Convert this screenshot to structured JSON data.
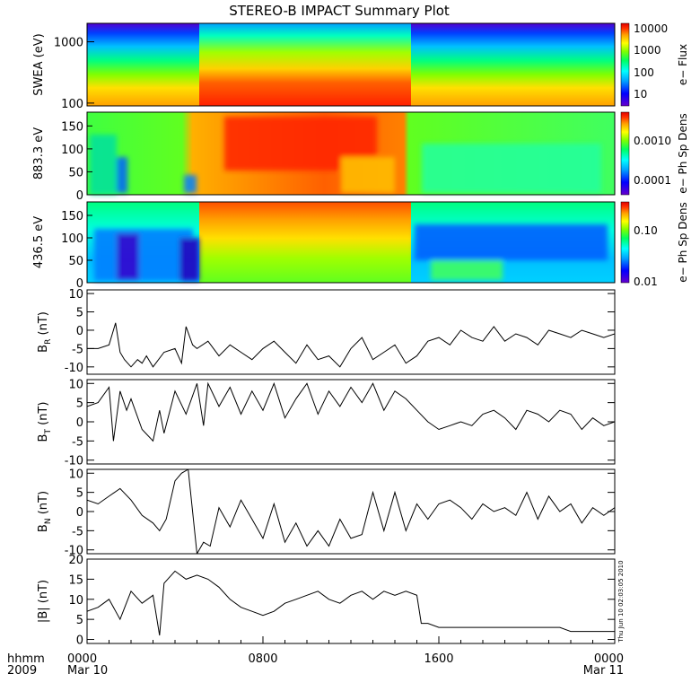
{
  "title": "STEREO-B IMPACT Summary Plot",
  "footer": {
    "left_label_1": "hhmm",
    "left_label_2": "2009",
    "x_ticks": [
      {
        "hour": 0,
        "label": "0000",
        "sublabel": "Mar 10"
      },
      {
        "hour": 8,
        "label": "0800",
        "sublabel": ""
      },
      {
        "hour": 16,
        "label": "1600",
        "sublabel": ""
      },
      {
        "hour": 24,
        "label": "0000",
        "sublabel": "Mar 11"
      }
    ],
    "timestamp": "Thu Jun 10 02:03:05 2010"
  },
  "colors": {
    "spectrogram_scale": [
      "#6600cc",
      "#0000ff",
      "#00a0ff",
      "#00ffff",
      "#00ff60",
      "#80ff00",
      "#ffff00",
      "#ffa000",
      "#ff3000",
      "#e00000"
    ]
  },
  "chart_data": [
    {
      "type": "heatmap",
      "ylabel": "SWEA (eV)",
      "yscale": "log",
      "ylim": [
        90,
        2000
      ],
      "yticks": [
        {
          "value": 1000,
          "label": "1000"
        },
        {
          "value": 100,
          "label": "100"
        }
      ],
      "colorbar_label": "e− Flux",
      "colorbar_ticks": [
        "10000",
        "1000",
        "100",
        "10"
      ],
      "description_of_data": "high flux at low energies, enhanced from ~05:00 to ~15:00"
    },
    {
      "type": "heatmap",
      "ylabel": "883.3 eV",
      "ylim": [
        0,
        180
      ],
      "yticks": [
        {
          "value": 150,
          "label": "150"
        },
        {
          "value": 100,
          "label": "100"
        },
        {
          "value": 50,
          "label": "50"
        },
        {
          "value": 0,
          "label": "0"
        }
      ],
      "colorbar_label": "e− Ph Sp Dens",
      "colorbar_ticks": [
        "0.0010",
        "0.0001"
      ]
    },
    {
      "type": "heatmap",
      "ylabel": "436.5 eV",
      "ylim": [
        0,
        180
      ],
      "yticks": [
        {
          "value": 150,
          "label": "150"
        },
        {
          "value": 100,
          "label": "100"
        },
        {
          "value": 50,
          "label": "50"
        },
        {
          "value": 0,
          "label": "0"
        }
      ],
      "colorbar_label": "e− Ph Sp Dens",
      "colorbar_ticks": [
        "0.10",
        "0.01"
      ]
    },
    {
      "type": "line",
      "ylabel": "B_R (nT)",
      "ylim": [
        -12,
        11
      ],
      "yticks": [
        10,
        5,
        0,
        -5,
        -10
      ],
      "x": [
        0,
        0.5,
        1,
        1.3,
        1.5,
        1.7,
        2,
        2.3,
        2.5,
        2.7,
        3,
        3.5,
        4,
        4.3,
        4.5,
        4.8,
        5,
        5.5,
        6,
        6.5,
        7,
        7.5,
        8,
        8.5,
        9,
        9.5,
        10,
        10.5,
        11,
        11.5,
        12,
        12.5,
        13,
        13.5,
        14,
        14.5,
        15,
        15.5,
        16,
        16.5,
        17,
        17.5,
        18,
        18.5,
        19,
        19.5,
        20,
        20.5,
        21,
        21.5,
        22,
        22.5,
        23,
        23.5,
        24
      ],
      "y": [
        -5,
        -5,
        -4,
        2,
        -6,
        -8,
        -10,
        -8,
        -9,
        -7,
        -10,
        -6,
        -5,
        -9,
        1,
        -4,
        -5,
        -3,
        -7,
        -4,
        -6,
        -8,
        -5,
        -3,
        -6,
        -9,
        -4,
        -8,
        -7,
        -10,
        -5,
        -2,
        -8,
        -6,
        -4,
        -9,
        -7,
        -3,
        -2,
        -4,
        0,
        -2,
        -3,
        1,
        -3,
        -1,
        -2,
        -4,
        0,
        -1,
        -2,
        0,
        -1,
        -2,
        -1
      ]
    },
    {
      "type": "line",
      "ylabel": "B_T (nT)",
      "ylim": [
        -11,
        11
      ],
      "yticks": [
        10,
        5,
        0,
        -5,
        -10
      ],
      "x": [
        0,
        0.5,
        1,
        1.2,
        1.5,
        1.8,
        2,
        2.5,
        3,
        3.3,
        3.5,
        4,
        4.5,
        5,
        5.3,
        5.5,
        6,
        6.5,
        7,
        7.5,
        8,
        8.5,
        9,
        9.5,
        10,
        10.5,
        11,
        11.5,
        12,
        12.5,
        13,
        13.5,
        14,
        14.5,
        15,
        15.5,
        16,
        16.5,
        17,
        17.5,
        18,
        18.5,
        19,
        19.5,
        20,
        20.5,
        21,
        21.5,
        22,
        22.5,
        23,
        23.5,
        24
      ],
      "y": [
        4,
        5,
        9,
        -5,
        8,
        3,
        6,
        -2,
        -5,
        3,
        -3,
        8,
        2,
        10,
        -1,
        10,
        4,
        9,
        2,
        8,
        3,
        10,
        1,
        6,
        10,
        2,
        8,
        4,
        9,
        5,
        10,
        3,
        8,
        6,
        3,
        0,
        -2,
        -1,
        0,
        -1,
        2,
        3,
        1,
        -2,
        3,
        2,
        0,
        3,
        2,
        -2,
        1,
        -1,
        0
      ]
    },
    {
      "type": "line",
      "ylabel": "B_N (nT)",
      "ylim": [
        -11,
        11
      ],
      "yticks": [
        10,
        5,
        0,
        -5,
        -10
      ],
      "x": [
        0,
        0.5,
        1,
        1.5,
        2,
        2.5,
        3,
        3.3,
        3.6,
        4,
        4.3,
        4.6,
        5,
        5.3,
        5.6,
        6,
        6.5,
        7,
        7.5,
        8,
        8.5,
        9,
        9.5,
        10,
        10.5,
        11,
        11.5,
        12,
        12.5,
        13,
        13.5,
        14,
        14.5,
        15,
        15.5,
        16,
        16.5,
        17,
        17.5,
        18,
        18.5,
        19,
        19.5,
        20,
        20.5,
        21,
        21.5,
        22,
        22.5,
        23,
        23.5,
        24
      ],
      "y": [
        3,
        2,
        4,
        6,
        3,
        -1,
        -3,
        -5,
        -2,
        8,
        10,
        11,
        -11,
        -8,
        -9,
        1,
        -4,
        3,
        -2,
        -7,
        2,
        -8,
        -3,
        -9,
        -5,
        -9,
        -2,
        -7,
        -6,
        5,
        -5,
        5,
        -5,
        2,
        -2,
        2,
        3,
        1,
        -2,
        2,
        0,
        1,
        -1,
        5,
        -2,
        4,
        0,
        2,
        -3,
        1,
        -1,
        1
      ]
    },
    {
      "type": "line",
      "ylabel": "|B| (nT)",
      "ylim": [
        -1,
        20
      ],
      "yticks": [
        20,
        15,
        10,
        5,
        0
      ],
      "x": [
        0,
        0.5,
        1,
        1.5,
        2,
        2.5,
        3,
        3.3,
        3.5,
        4,
        4.5,
        5,
        5.5,
        6,
        6.5,
        7,
        7.5,
        8,
        8.5,
        9,
        9.5,
        10,
        10.5,
        11,
        11.5,
        12,
        12.5,
        13,
        13.5,
        14,
        14.5,
        15,
        15.2,
        15.5,
        16,
        16.5,
        17,
        17.5,
        18,
        18.5,
        19,
        19.5,
        20,
        20.5,
        21,
        21.5,
        22,
        22.5,
        23,
        23.5,
        24
      ],
      "y": [
        7,
        8,
        10,
        5,
        12,
        9,
        11,
        1,
        14,
        17,
        15,
        16,
        15,
        13,
        10,
        8,
        7,
        6,
        7,
        9,
        10,
        11,
        12,
        10,
        9,
        11,
        12,
        10,
        12,
        11,
        12,
        11,
        4,
        4,
        3,
        3,
        3,
        3,
        3,
        3,
        3,
        3,
        3,
        3,
        3,
        3,
        2,
        2,
        2,
        2,
        2
      ]
    }
  ]
}
